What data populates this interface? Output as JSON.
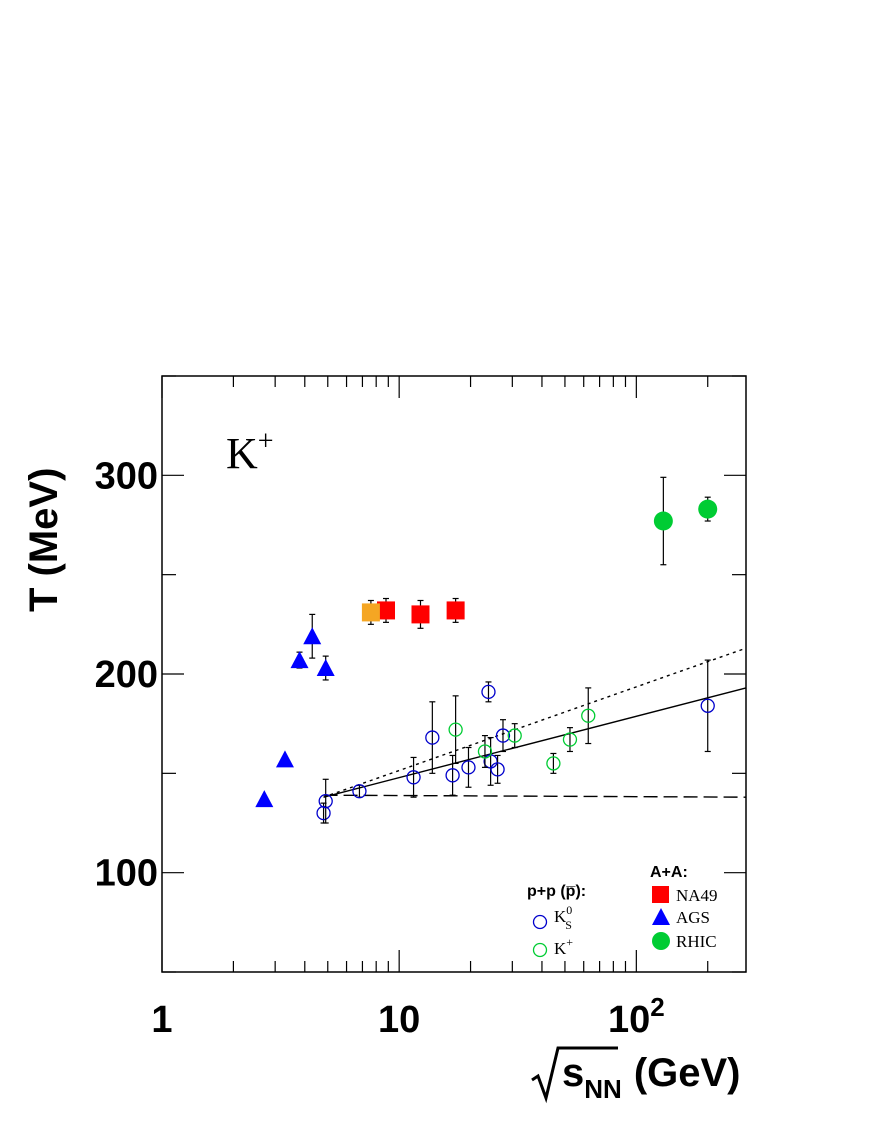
{
  "chart_data": {
    "type": "scatter",
    "panel_label": "K",
    "panel_label_sup": "+",
    "xlabel": "(GeV)",
    "xlabel_sqrt_var": "s",
    "xlabel_sub": "NN",
    "ylabel": "T (MeV)",
    "xscale": "log",
    "xlim": [
      1,
      290
    ],
    "ylim": [
      50,
      350
    ],
    "grid": false,
    "x_ticks": [
      {
        "value": 1,
        "label": "1"
      },
      {
        "value": 10,
        "label": "10"
      },
      {
        "value": 100,
        "label": "10",
        "sup": "2"
      }
    ],
    "y_ticks": [
      {
        "value": 100,
        "label": "100"
      },
      {
        "value": 200,
        "label": "200"
      },
      {
        "value": 300,
        "label": "300"
      }
    ],
    "legend": {
      "pp_title": "p+p (p̅):",
      "aa_title": "A+A:",
      "entries": [
        {
          "series": "NA49",
          "label": "NA49"
        },
        {
          "series": "AGS",
          "label": "AGS"
        },
        {
          "series": "RHIC",
          "label": "RHIC"
        },
        {
          "series": "pp_K0S",
          "label": "K",
          "sup": "0",
          "sub": "S"
        },
        {
          "series": "pp_Kplus",
          "label": "K",
          "sup": "+"
        }
      ]
    },
    "series": [
      {
        "name": "NA49",
        "marker": "square",
        "color": "#ff0000",
        "points": [
          [
            8.8,
            232,
            6
          ],
          [
            12.3,
            230,
            7
          ],
          [
            17.3,
            232,
            6
          ]
        ]
      },
      {
        "name": "NA49",
        "marker": "square",
        "color": "#f5a623",
        "points": [
          [
            7.6,
            231,
            6
          ]
        ]
      },
      {
        "name": "AGS",
        "marker": "triangle",
        "color": "#0000ff",
        "points": [
          [
            2.7,
            137,
            0
          ],
          [
            3.3,
            157,
            0
          ],
          [
            3.8,
            207,
            4
          ],
          [
            4.3,
            219,
            11
          ],
          [
            4.9,
            203,
            6
          ]
        ]
      },
      {
        "name": "RHIC",
        "marker": "circle",
        "color": "#00cc33",
        "points": [
          [
            130,
            277,
            22
          ],
          [
            200,
            283,
            6
          ]
        ]
      },
      {
        "name": "pp_K0S",
        "marker": "open_circle",
        "color": "#0000cc",
        "points": [
          [
            4.8,
            130,
            5
          ],
          [
            4.9,
            136,
            11
          ],
          [
            6.8,
            141,
            3
          ],
          [
            11.5,
            148,
            10
          ],
          [
            13.8,
            168,
            18
          ],
          [
            16.8,
            149,
            10
          ],
          [
            19.6,
            153,
            10
          ],
          [
            23.8,
            191,
            5
          ],
          [
            24.3,
            156,
            12
          ],
          [
            26.0,
            152,
            7
          ],
          [
            27.4,
            169,
            8
          ],
          [
            200,
            184,
            23
          ]
        ]
      },
      {
        "name": "pp_Kplus",
        "marker": "open_circle",
        "color": "#00cc33",
        "points": [
          [
            17.3,
            172,
            17
          ],
          [
            23.0,
            161,
            8
          ],
          [
            30.7,
            169,
            6
          ],
          [
            44.7,
            155,
            5
          ],
          [
            52.5,
            167,
            6
          ],
          [
            62.7,
            179,
            14
          ]
        ]
      }
    ],
    "lines": [
      {
        "style": "solid",
        "points": [
          [
            4.8,
            138
          ],
          [
            290,
            193
          ]
        ]
      },
      {
        "style": "dotted",
        "points": [
          [
            4.8,
            138
          ],
          [
            290,
            213
          ]
        ]
      },
      {
        "style": "dashed",
        "points": [
          [
            4.8,
            139
          ],
          [
            290,
            138
          ]
        ]
      }
    ]
  }
}
